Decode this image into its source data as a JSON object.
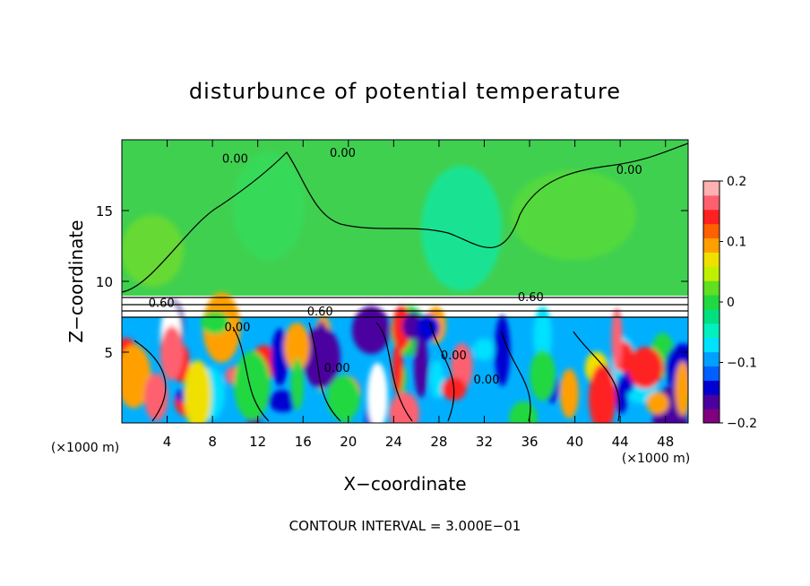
{
  "chart_data": {
    "type": "heatmap",
    "title": "disturbunce of potential temperature",
    "xlabel": "X−coordinate",
    "ylabel": "Z−coordinate",
    "x_unit_label": "(×1000 m)",
    "x_unit_label_right": "(×1000 m)",
    "footer": "CONTOUR INTERVAL = 3.000E−01",
    "xlim": [
      0,
      50
    ],
    "ylim": [
      0,
      20
    ],
    "x_ticks": [
      4,
      8,
      12,
      16,
      20,
      24,
      28,
      32,
      36,
      40,
      44,
      48
    ],
    "x_tick_labels": [
      "4",
      "8",
      "12",
      "16",
      "20",
      "24",
      "28",
      "32",
      "36",
      "40",
      "44",
      "48"
    ],
    "y_ticks": [
      5,
      10,
      15
    ],
    "y_tick_labels": [
      "5",
      "10",
      "15"
    ],
    "colorbar": {
      "range": [
        -0.2,
        0.2
      ],
      "ticks": [
        0.2,
        0.1,
        0,
        -0.1,
        -0.2
      ],
      "tick_labels": [
        "0.2",
        "0.1",
        "0",
        "−0.1",
        "−0.2"
      ],
      "colors": [
        "#800080",
        "#4b00a0",
        "#0000d0",
        "#0060ff",
        "#00a0ff",
        "#00e0ff",
        "#00f0c0",
        "#00e080",
        "#20d840",
        "#60e020",
        "#c0f000",
        "#f0e000",
        "#ffa000",
        "#ff6000",
        "#ff2020",
        "#ff6070",
        "#ffb0b0"
      ]
    },
    "contour_labels": [
      {
        "text": "0.00",
        "x": 10,
        "y": 18.4
      },
      {
        "text": "0.00",
        "x": 19.5,
        "y": 18.8
      },
      {
        "text": "0.00",
        "x": 44.8,
        "y": 17.6
      },
      {
        "text": "0.60",
        "x": 36.1,
        "y": 8.6
      },
      {
        "text": "0.60",
        "x": 17.5,
        "y": 7.6
      },
      {
        "text": "0.60",
        "x": 3.5,
        "y": 8.2
      },
      {
        "text": "0.00",
        "x": 10.2,
        "y": 6.5
      },
      {
        "text": "0.00",
        "x": 19.0,
        "y": 3.6
      },
      {
        "text": "0.00",
        "x": 29.3,
        "y": 4.5
      },
      {
        "text": "0.00",
        "x": 32.2,
        "y": 2.8
      }
    ]
  }
}
